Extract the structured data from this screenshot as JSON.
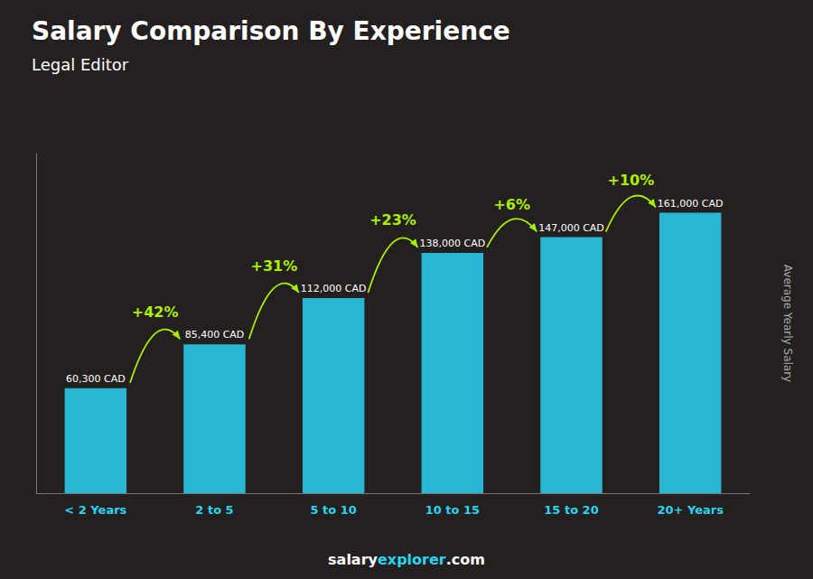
{
  "chart_data": {
    "type": "bar",
    "title": "Salary Comparison By Experience",
    "subtitle": "Legal Editor",
    "categories": [
      "< 2 Years",
      "2 to 5",
      "5 to 10",
      "10 to 15",
      "15 to 20",
      "20+ Years"
    ],
    "values": [
      60300,
      85400,
      112000,
      138000,
      147000,
      161000
    ],
    "value_labels": [
      "60,300 CAD",
      "85,400 CAD",
      "112,000 CAD",
      "138,000 CAD",
      "147,000 CAD",
      "161,000 CAD"
    ],
    "data_labels": true,
    "annotations": [
      "+42%",
      "+31%",
      "+23%",
      "+6%",
      "+10%"
    ],
    "color": "#29b6d4",
    "ylabel": "Average Yearly Salary",
    "footer": [
      "salary",
      "explorer",
      ".com"
    ],
    "ylim": [
      0,
      195000
    ],
    "grid": false,
    "tick_labels": "x"
  }
}
